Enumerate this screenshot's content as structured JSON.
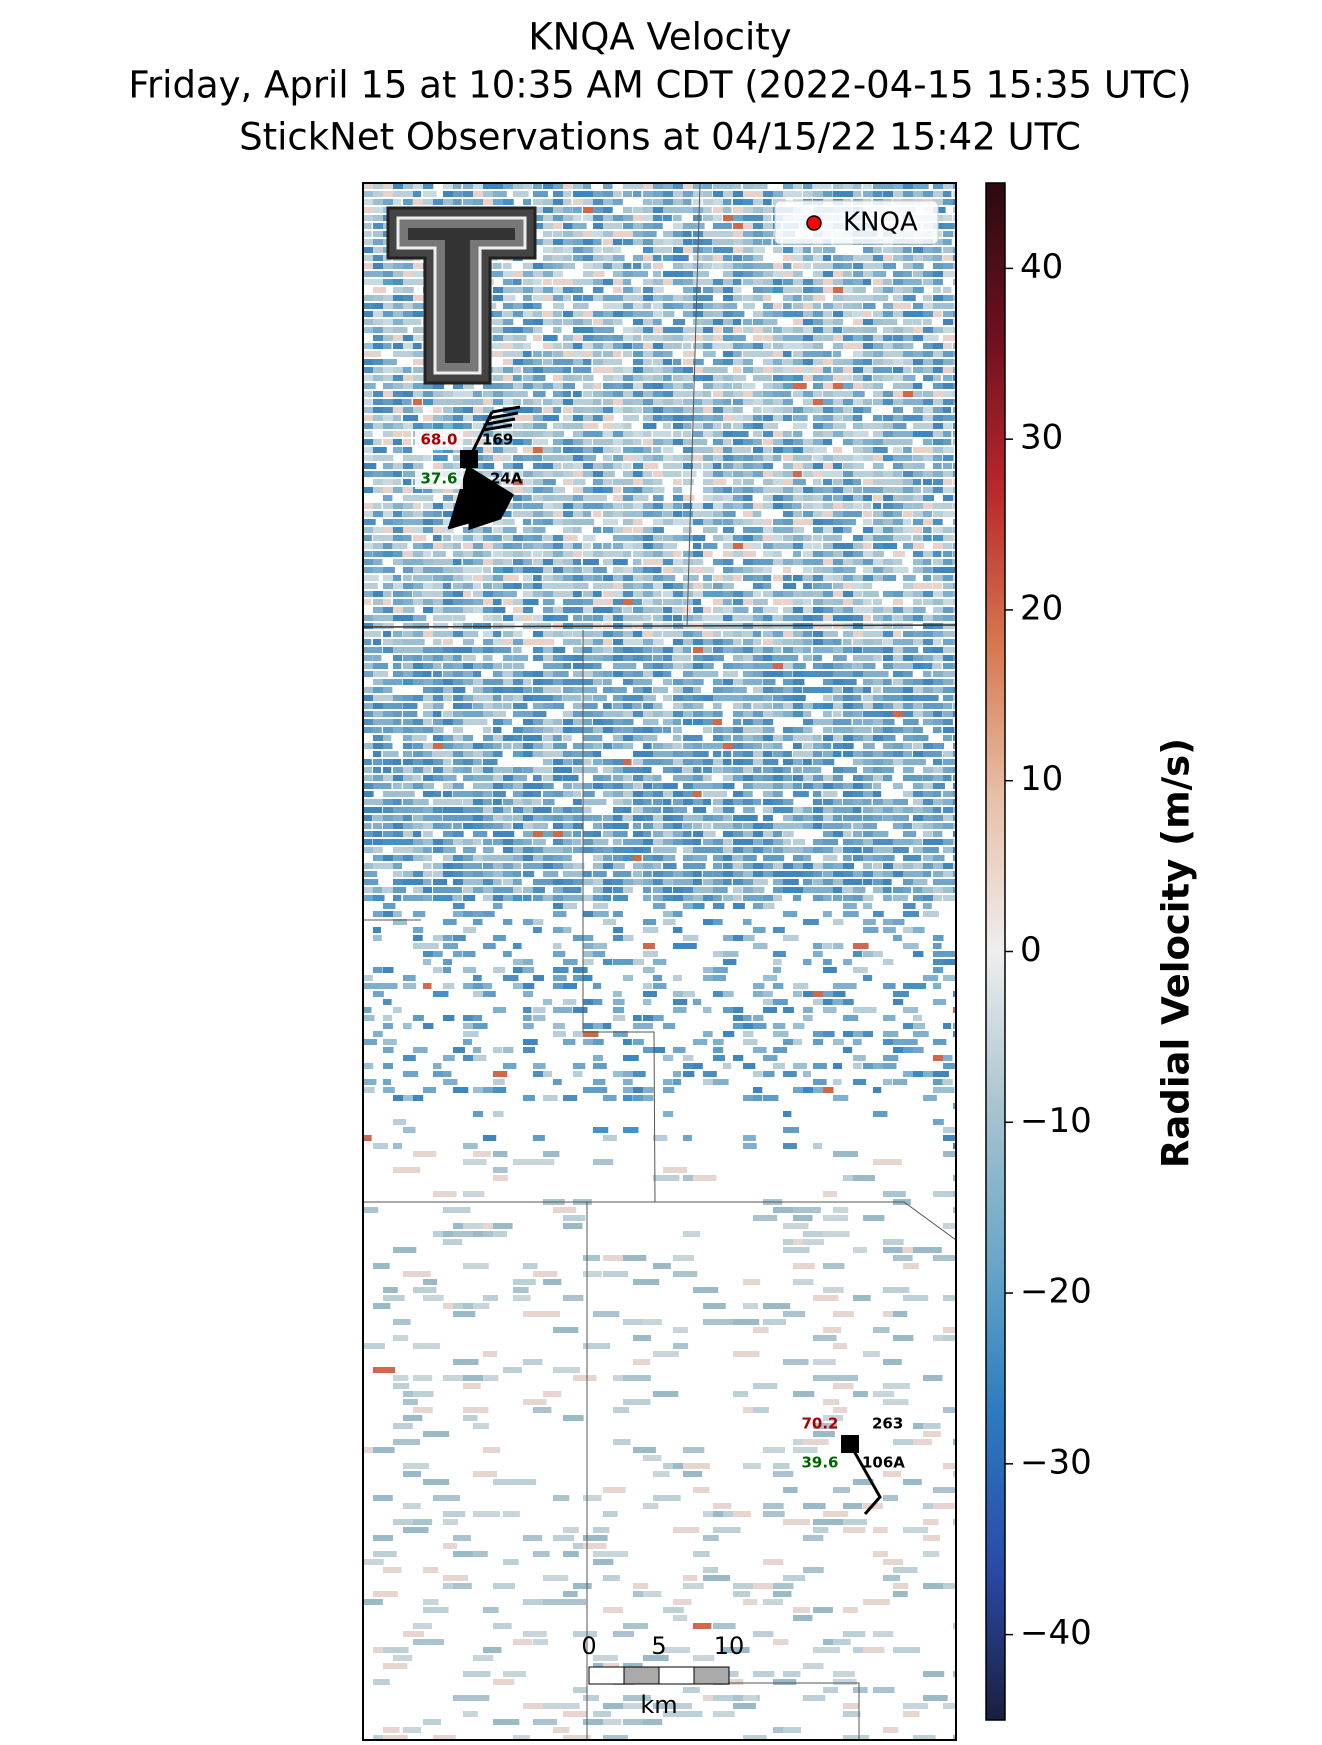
{
  "header": {
    "title_lines": [
      "KNQA Velocity",
      "Friday, April 15 at 10:35 AM CDT (2022-04-15 15:35 UTC)",
      "StickNet Observations at 04/15/22 15:42 UTC"
    ]
  },
  "legend": {
    "label": "KNQA",
    "color": "#ff0000"
  },
  "colorbar": {
    "label": "Radial Velocity (m/s)",
    "lim": [
      -45,
      45
    ],
    "ticks": [
      {
        "value": -40,
        "label": "−40"
      },
      {
        "value": -30,
        "label": "−30"
      },
      {
        "value": -20,
        "label": "−20"
      },
      {
        "value": -10,
        "label": "−10"
      },
      0,
      10,
      20,
      30,
      40
    ],
    "colors": [
      "#1a1f3f",
      "#2a4aa8",
      "#2c7bbf",
      "#6aa7c8",
      "#a9c4cf",
      "#eeeeee",
      "#e8c0a8",
      "#d6774f",
      "#b8282a",
      "#6e1020",
      "#2a0a10"
    ]
  },
  "stations": [
    {
      "temperature": "68.0",
      "pressure": "169",
      "dewpoint": "37.6",
      "id": "24A"
    },
    {
      "temperature": "70.2",
      "pressure": "263",
      "dewpoint": "39.6",
      "id": "106A"
    }
  ],
  "scale_bar": {
    "labels": [
      "0",
      "5",
      "10"
    ],
    "unit": "km"
  }
}
